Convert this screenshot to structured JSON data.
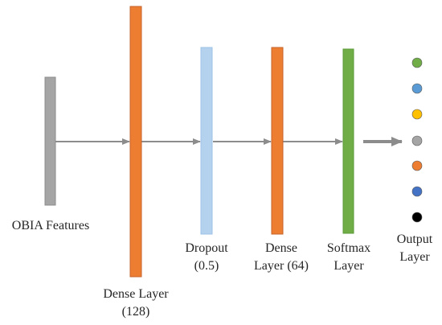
{
  "diagram": {
    "layers": [
      {
        "id": "obia",
        "label_lines": [
          "OBIA Features"
        ],
        "color": "#a5a5a5",
        "border": "#8c8c8c"
      },
      {
        "id": "dense128",
        "label_lines": [
          "Dense Layer",
          "(128)"
        ],
        "color": "#ed7d31",
        "border": "#c5622a"
      },
      {
        "id": "dropout",
        "label_lines": [
          "Dropout",
          "(0.5)"
        ],
        "color": "#b4d2ee",
        "border": "#9ec3e6"
      },
      {
        "id": "dense64",
        "label_lines": [
          "Dense",
          "Layer (64)"
        ],
        "color": "#ed7d31",
        "border": "#c5622a"
      },
      {
        "id": "softmax",
        "label_lines": [
          "Softmax",
          "Layer"
        ],
        "color": "#70ad47",
        "border": "#5a9a37"
      }
    ],
    "output": {
      "label_lines": [
        "Output",
        "Layer"
      ],
      "node_colors": [
        "#70ad47",
        "#5b9bd5",
        "#ffc000",
        "#a5a5a5",
        "#ed7d31",
        "#4472c4",
        "#000000"
      ]
    },
    "arrow_color": "#8c8c8c"
  }
}
